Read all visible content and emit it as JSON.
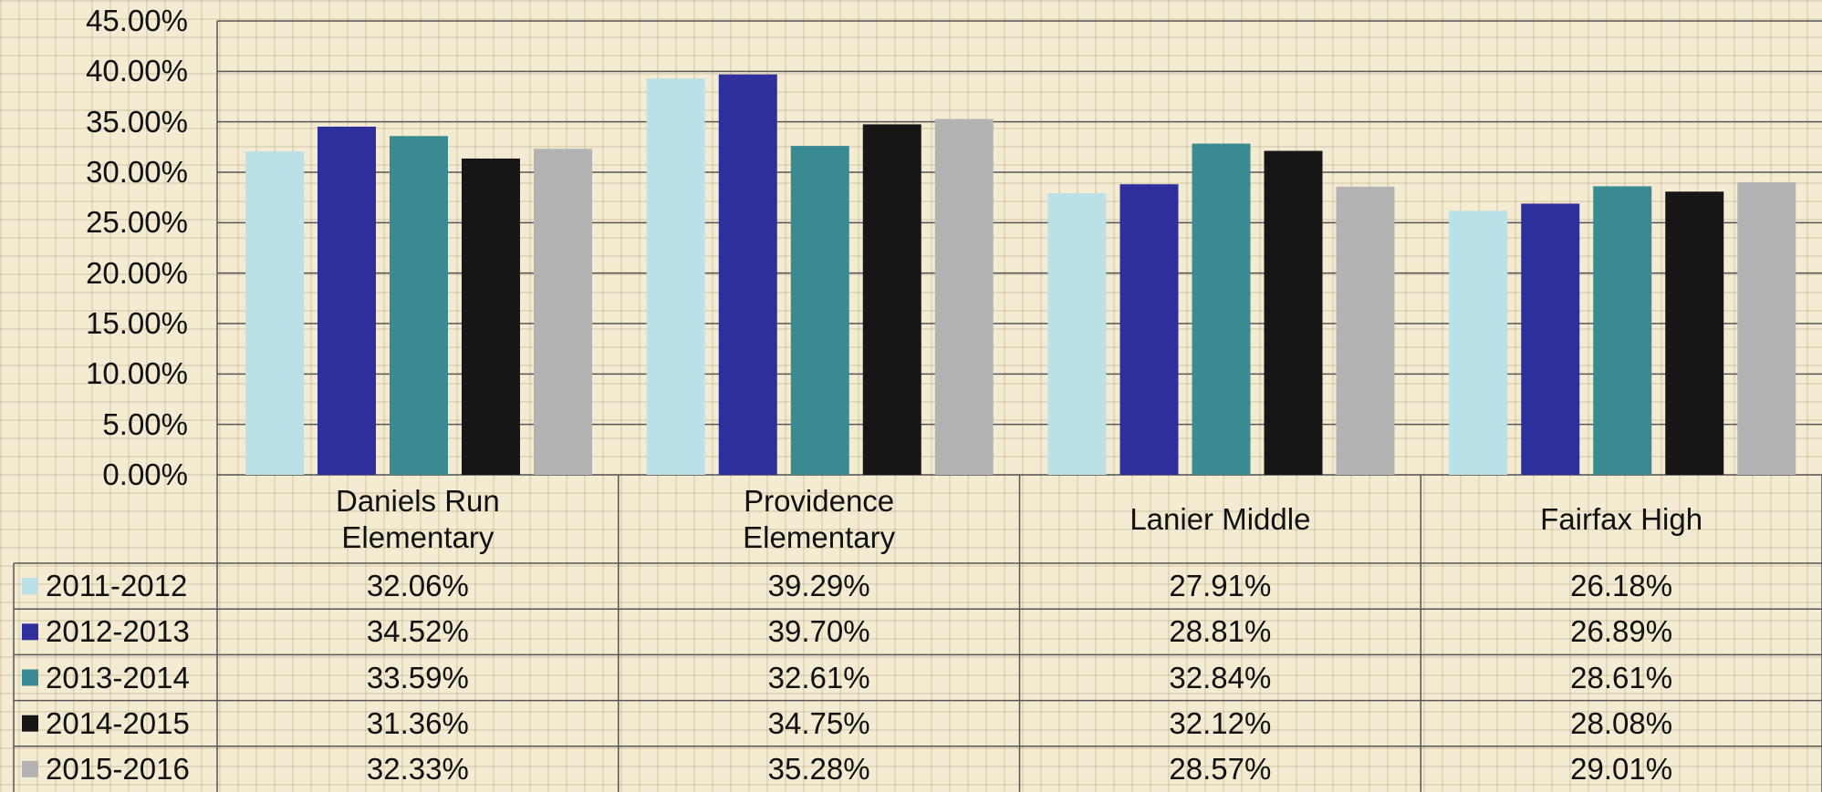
{
  "chart_data": {
    "type": "bar",
    "categories": [
      "Daniels Run Elementary",
      "Providence Elementary",
      "Lanier Middle",
      "Fairfax High"
    ],
    "series": [
      {
        "name": "2011-2012",
        "color": "#b9e1e7",
        "values": [
          32.06,
          39.29,
          27.91,
          26.18
        ],
        "value_labels": [
          "32.06%",
          "39.29%",
          "27.91%",
          "26.18%"
        ]
      },
      {
        "name": "2012-2013",
        "color": "#2f2f9c",
        "values": [
          34.52,
          39.7,
          28.81,
          26.89
        ],
        "value_labels": [
          "34.52%",
          "39.70%",
          "28.81%",
          "26.89%"
        ]
      },
      {
        "name": "2013-2014",
        "color": "#3a8b91",
        "values": [
          33.59,
          32.61,
          32.84,
          28.61
        ],
        "value_labels": [
          "33.59%",
          "32.61%",
          "32.84%",
          "28.61%"
        ]
      },
      {
        "name": "2014-2015",
        "color": "#161616",
        "values": [
          31.36,
          34.75,
          32.12,
          28.08
        ],
        "value_labels": [
          "31.36%",
          "34.75%",
          "32.12%",
          "28.08%"
        ]
      },
      {
        "name": "2015-2016",
        "color": "#b3b3b3",
        "values": [
          32.33,
          35.28,
          28.57,
          29.01
        ],
        "value_labels": [
          "32.33%",
          "35.28%",
          "28.57%",
          "29.01%"
        ]
      }
    ],
    "ylim": [
      0,
      45
    ],
    "yticks": [
      {
        "value": 0,
        "label": "0.00%"
      },
      {
        "value": 5,
        "label": "5.00%"
      },
      {
        "value": 10,
        "label": "10.00%"
      },
      {
        "value": 15,
        "label": "15.00%"
      },
      {
        "value": 20,
        "label": "20.00%"
      },
      {
        "value": 25,
        "label": "25.00%"
      },
      {
        "value": 30,
        "label": "30.00%"
      },
      {
        "value": 35,
        "label": "35.00%"
      },
      {
        "value": 40,
        "label": "40.00%"
      },
      {
        "value": 45,
        "label": "45.00%"
      }
    ],
    "grid": true
  }
}
